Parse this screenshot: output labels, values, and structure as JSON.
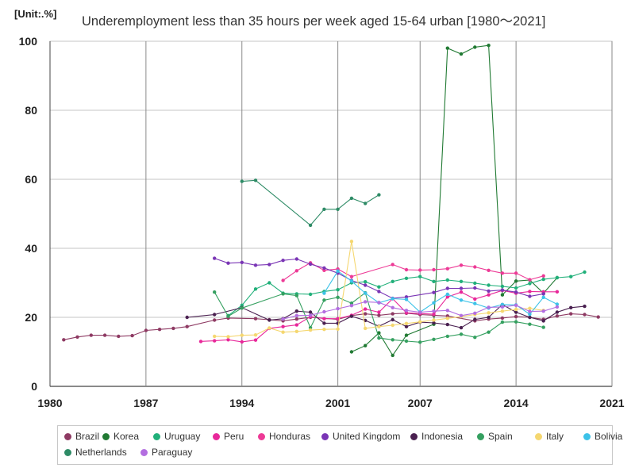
{
  "header": {
    "unit": "[Unit:.%]",
    "title": "Underemployment less than 35 hours per week aged 15-64 urban [1980～2021]"
  },
  "chart_data": {
    "type": "line",
    "title": "Underemployment less than 35 hours per week aged 15-64 urban [1980～2021]",
    "unit": "[Unit:.%]",
    "xlim": [
      1980,
      2021
    ],
    "ylim": [
      0,
      100
    ],
    "x_ticks": [
      1980,
      1987,
      1994,
      2001,
      2007,
      2014,
      2021
    ],
    "y_ticks": [
      0,
      20,
      40,
      60,
      80,
      100
    ],
    "grid": true,
    "legend_position": "bottom",
    "series": [
      {
        "name": "Brazil",
        "color": "#8e3a63",
        "points": [
          [
            1981,
            13.5
          ],
          [
            1982,
            14.3
          ],
          [
            1983,
            14.8
          ],
          [
            1984,
            14.8
          ],
          [
            1985,
            14.5
          ],
          [
            1986,
            14.7
          ],
          [
            1987,
            16.2
          ],
          [
            1988,
            16.5
          ],
          [
            1989,
            16.8
          ],
          [
            1990,
            17.3
          ],
          [
            1992,
            19.2
          ],
          [
            1993,
            19.8
          ],
          [
            1995,
            19.6
          ],
          [
            1996,
            19.3
          ],
          [
            1997,
            19.0
          ],
          [
            1998,
            19.5
          ],
          [
            1999,
            20.0
          ],
          [
            2001,
            19.4
          ],
          [
            2002,
            20.5
          ],
          [
            2003,
            21.0
          ],
          [
            2004,
            20.6
          ],
          [
            2005,
            21.0
          ],
          [
            2006,
            21.2
          ],
          [
            2007,
            20.8
          ],
          [
            2008,
            20.6
          ],
          [
            2009,
            20.4
          ],
          [
            2011,
            19.0
          ],
          [
            2012,
            19.5
          ],
          [
            2013,
            19.8
          ],
          [
            2014,
            20.2
          ],
          [
            2015,
            20.0
          ],
          [
            2016,
            19.4
          ],
          [
            2017,
            20.4
          ],
          [
            2018,
            21.0
          ],
          [
            2019,
            20.8
          ],
          [
            2020,
            20.1
          ]
        ]
      },
      {
        "name": "Korea",
        "color": "#217a33",
        "points": [
          [
            2002,
            10.0
          ],
          [
            2003,
            11.8
          ],
          [
            2004,
            15.5
          ],
          [
            2005,
            9.0
          ],
          [
            2006,
            14.8
          ],
          [
            2008,
            18.0
          ],
          [
            2009,
            98.0
          ],
          [
            2010,
            96.3
          ],
          [
            2011,
            98.3
          ],
          [
            2012,
            98.8
          ],
          [
            2013,
            26.5
          ],
          [
            2014,
            30.5
          ],
          [
            2015,
            30.8
          ],
          [
            2016,
            27.0
          ],
          [
            2017,
            31.5
          ]
        ]
      },
      {
        "name": "Uruguay",
        "color": "#21b07a",
        "points": [
          [
            1993,
            20.5
          ],
          [
            1994,
            23.5
          ],
          [
            1995,
            28.2
          ],
          [
            1996,
            30.0
          ],
          [
            1997,
            27.0
          ],
          [
            1998,
            26.8
          ],
          [
            1999,
            26.7
          ],
          [
            2000,
            27.5
          ],
          [
            2001,
            28.0
          ],
          [
            2002,
            30.0
          ],
          [
            2003,
            30.3
          ],
          [
            2004,
            28.8
          ],
          [
            2005,
            30.4
          ],
          [
            2006,
            31.3
          ],
          [
            2007,
            31.8
          ],
          [
            2008,
            30.4
          ],
          [
            2009,
            30.8
          ],
          [
            2010,
            30.4
          ],
          [
            2011,
            29.9
          ],
          [
            2012,
            29.3
          ],
          [
            2013,
            29.0
          ],
          [
            2014,
            28.5
          ],
          [
            2015,
            29.8
          ],
          [
            2016,
            31.0
          ],
          [
            2017,
            31.5
          ],
          [
            2018,
            31.8
          ],
          [
            2019,
            33.1
          ]
        ]
      },
      {
        "name": "Peru",
        "color": "#e8289a",
        "points": [
          [
            1991,
            13.0
          ],
          [
            1992,
            13.2
          ],
          [
            1993,
            13.5
          ],
          [
            1994,
            12.9
          ],
          [
            1995,
            13.4
          ],
          [
            1996,
            16.8
          ],
          [
            1997,
            17.3
          ],
          [
            1998,
            17.8
          ],
          [
            1999,
            20.2
          ],
          [
            2000,
            19.6
          ],
          [
            2001,
            19.6
          ],
          [
            2002,
            20.6
          ],
          [
            2003,
            22.4
          ],
          [
            2004,
            21.5
          ],
          [
            2005,
            25.4
          ],
          [
            2006,
            21.3
          ],
          [
            2007,
            21.1
          ],
          [
            2008,
            20.9
          ],
          [
            2009,
            25.9
          ],
          [
            2010,
            27.3
          ],
          [
            2011,
            25.3
          ],
          [
            2012,
            26.5
          ],
          [
            2013,
            27.8
          ],
          [
            2014,
            27.0
          ],
          [
            2015,
            27.5
          ],
          [
            2016,
            27.4
          ],
          [
            2017,
            27.4
          ]
        ]
      },
      {
        "name": "Honduras",
        "color": "#ed3a96",
        "points": [
          [
            1997,
            30.7
          ],
          [
            1998,
            33.5
          ],
          [
            1999,
            35.8
          ],
          [
            2000,
            33.6
          ],
          [
            2001,
            34.0
          ],
          [
            2002,
            31.8
          ],
          [
            2005,
            35.3
          ],
          [
            2006,
            33.8
          ],
          [
            2007,
            33.7
          ],
          [
            2008,
            33.8
          ],
          [
            2009,
            34.1
          ],
          [
            2010,
            35.1
          ],
          [
            2011,
            34.6
          ],
          [
            2012,
            33.6
          ],
          [
            2013,
            32.8
          ],
          [
            2014,
            32.8
          ],
          [
            2015,
            30.9
          ],
          [
            2016,
            32.0
          ]
        ]
      },
      {
        "name": "United Kingdom",
        "color": "#7a35b5",
        "points": [
          [
            1992,
            37.1
          ],
          [
            1993,
            35.7
          ],
          [
            1994,
            35.9
          ],
          [
            1995,
            35.1
          ],
          [
            1996,
            35.3
          ],
          [
            1997,
            36.5
          ],
          [
            1998,
            36.9
          ],
          [
            1999,
            35.4
          ],
          [
            2000,
            34.3
          ],
          [
            2001,
            32.8
          ],
          [
            2002,
            30.7
          ],
          [
            2003,
            29.3
          ],
          [
            2004,
            27.5
          ],
          [
            2005,
            25.5
          ],
          [
            2006,
            25.9
          ],
          [
            2008,
            27.2
          ],
          [
            2009,
            28.4
          ],
          [
            2010,
            28.4
          ],
          [
            2011,
            28.5
          ],
          [
            2012,
            27.6
          ],
          [
            2013,
            27.9
          ],
          [
            2014,
            27.3
          ],
          [
            2015,
            26.1
          ],
          [
            2016,
            26.8
          ]
        ]
      },
      {
        "name": "Indonesia",
        "color": "#4a2050",
        "points": [
          [
            1990,
            20.0
          ],
          [
            1992,
            20.8
          ],
          [
            1994,
            22.8
          ],
          [
            1996,
            19.2
          ],
          [
            1997,
            19.6
          ],
          [
            1998,
            21.8
          ],
          [
            1999,
            21.5
          ],
          [
            2000,
            18.3
          ],
          [
            2001,
            18.3
          ],
          [
            2002,
            20.3
          ],
          [
            2003,
            19.1
          ],
          [
            2004,
            17.4
          ],
          [
            2005,
            19.3
          ],
          [
            2006,
            17.3
          ],
          [
            2007,
            18.6
          ],
          [
            2008,
            18.4
          ],
          [
            2009,
            17.9
          ],
          [
            2010,
            17.0
          ],
          [
            2011,
            19.4
          ],
          [
            2012,
            20.0
          ],
          [
            2013,
            23.7
          ],
          [
            2014,
            21.5
          ],
          [
            2015,
            20.0
          ],
          [
            2016,
            19.0
          ],
          [
            2017,
            21.5
          ],
          [
            2018,
            22.8
          ],
          [
            2019,
            23.2
          ]
        ]
      },
      {
        "name": "Spain",
        "color": "#35a060",
        "points": [
          [
            1992,
            27.3
          ],
          [
            1993,
            20.3
          ],
          [
            1994,
            22.7
          ],
          [
            1997,
            26.8
          ],
          [
            1998,
            26.3
          ],
          [
            1999,
            17.0
          ],
          [
            2000,
            25.0
          ],
          [
            2001,
            25.8
          ],
          [
            2002,
            24.1
          ],
          [
            2003,
            27.1
          ],
          [
            2004,
            14.0
          ],
          [
            2005,
            13.5
          ],
          [
            2006,
            13.1
          ],
          [
            2007,
            12.8
          ],
          [
            2008,
            13.6
          ],
          [
            2009,
            14.5
          ],
          [
            2010,
            15.1
          ],
          [
            2011,
            14.2
          ],
          [
            2012,
            15.7
          ],
          [
            2013,
            18.6
          ],
          [
            2014,
            18.7
          ],
          [
            2015,
            18.0
          ],
          [
            2016,
            17.1
          ]
        ]
      },
      {
        "name": "Italy",
        "color": "#f5d770",
        "points": [
          [
            1992,
            14.5
          ],
          [
            1993,
            14.4
          ],
          [
            1994,
            14.8
          ],
          [
            1995,
            14.9
          ],
          [
            1996,
            16.9
          ],
          [
            1997,
            15.7
          ],
          [
            1998,
            15.9
          ],
          [
            1999,
            16.3
          ],
          [
            2000,
            16.5
          ],
          [
            2001,
            16.6
          ],
          [
            2002,
            42.0
          ],
          [
            2003,
            16.8
          ],
          [
            2004,
            17.3
          ],
          [
            2005,
            17.7
          ],
          [
            2006,
            18.2
          ],
          [
            2007,
            18.7
          ],
          [
            2008,
            19.2
          ],
          [
            2009,
            19.7
          ],
          [
            2010,
            20.2
          ],
          [
            2011,
            20.8
          ],
          [
            2012,
            21.3
          ],
          [
            2013,
            21.8
          ],
          [
            2014,
            22.3
          ],
          [
            2015,
            22.6
          ],
          [
            2016,
            22.0
          ]
        ]
      },
      {
        "name": "Bolivia",
        "color": "#3cc2e8",
        "points": [
          [
            2000,
            27.0
          ],
          [
            2001,
            33.4
          ],
          [
            2002,
            30.5
          ],
          [
            2003,
            27.0
          ],
          [
            2004,
            24.2
          ],
          [
            2005,
            25.4
          ],
          [
            2006,
            25.2
          ],
          [
            2007,
            21.5
          ],
          [
            2008,
            24.2
          ],
          [
            2009,
            26.7
          ],
          [
            2010,
            25.0
          ],
          [
            2011,
            24.0
          ],
          [
            2012,
            22.7
          ],
          [
            2013,
            23.7
          ],
          [
            2014,
            23.6
          ],
          [
            2015,
            20.9
          ],
          [
            2016,
            25.8
          ],
          [
            2017,
            23.8
          ]
        ]
      },
      {
        "name": "Netherlands",
        "color": "#2e8b66",
        "points": [
          [
            1994,
            59.4
          ],
          [
            1995,
            59.7
          ],
          [
            1999,
            46.7
          ],
          [
            2000,
            51.3
          ],
          [
            2001,
            51.3
          ],
          [
            2002,
            54.5
          ],
          [
            2003,
            53.0
          ],
          [
            2004,
            55.5
          ]
        ]
      },
      {
        "name": "Paraguay",
        "color": "#b36ee0",
        "points": [
          [
            1997,
            19.5
          ],
          [
            1998,
            20.5
          ],
          [
            1999,
            20.6
          ],
          [
            2000,
            21.6
          ],
          [
            2001,
            22.5
          ],
          [
            2002,
            23.4
          ],
          [
            2003,
            24.5
          ],
          [
            2004,
            24.3
          ],
          [
            2005,
            22.8
          ],
          [
            2006,
            22.0
          ],
          [
            2007,
            21.5
          ],
          [
            2008,
            21.8
          ],
          [
            2009,
            22.0
          ],
          [
            2010,
            20.5
          ],
          [
            2011,
            21.2
          ],
          [
            2012,
            22.9
          ],
          [
            2013,
            23.0
          ],
          [
            2014,
            23.5
          ],
          [
            2015,
            21.7
          ],
          [
            2016,
            21.8
          ],
          [
            2017,
            23.0
          ]
        ]
      }
    ]
  }
}
